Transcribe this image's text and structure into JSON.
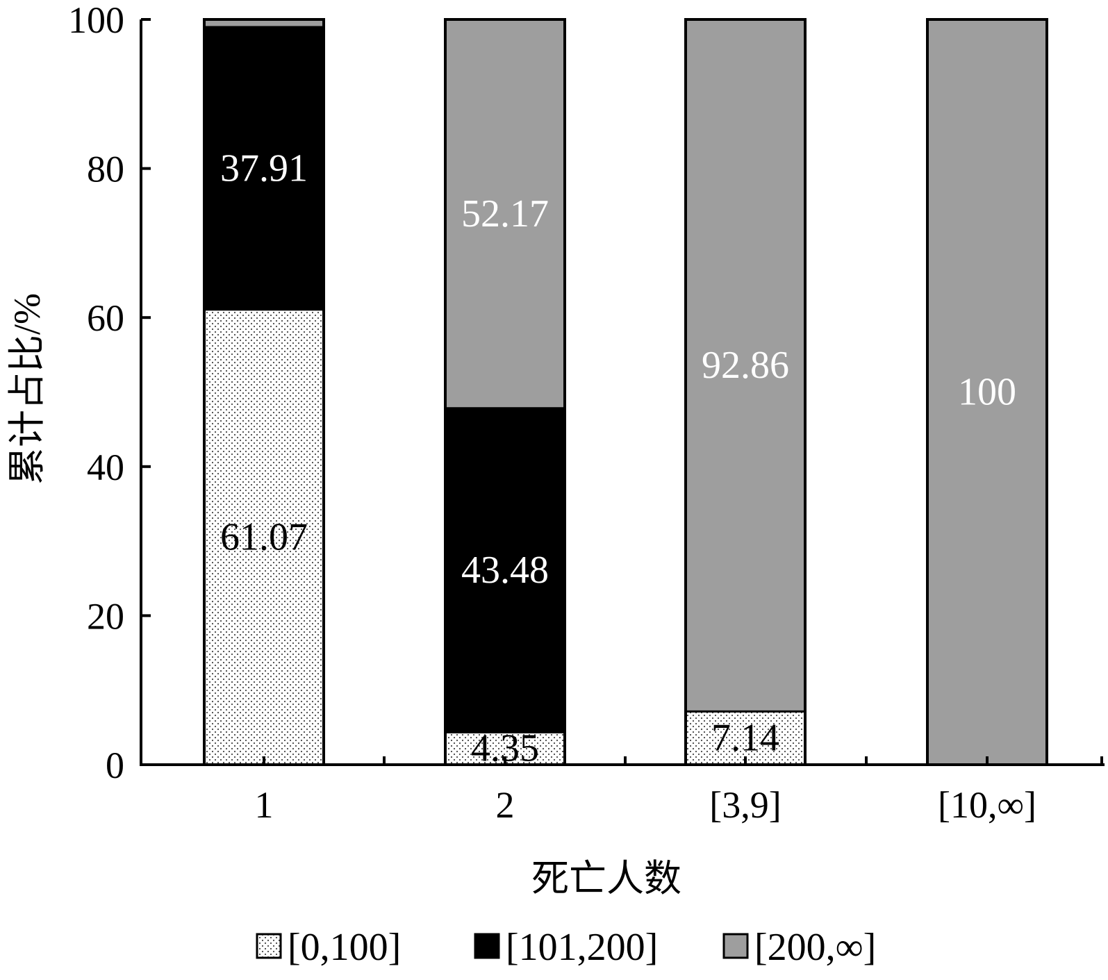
{
  "chart_data": {
    "type": "bar",
    "stacked": true,
    "categories": [
      "1",
      "2",
      "[3,9]",
      "[10,∞]"
    ],
    "series": [
      {
        "name": "[0,100]",
        "values": [
          61.07,
          4.35,
          7.14,
          0
        ],
        "color": "#ffffff",
        "pattern": "dots",
        "label_color": "#000000"
      },
      {
        "name": "[101,200]",
        "values": [
          37.91,
          43.48,
          0,
          0
        ],
        "color": "#000000",
        "label_color": "#ffffff"
      },
      {
        "name": "[200,∞]",
        "values": [
          1.02,
          52.17,
          92.86,
          100
        ],
        "color": "#9e9e9e",
        "label_color": "#ffffff"
      }
    ],
    "data_labels": [
      [
        "61.07",
        "37.91",
        ""
      ],
      [
        "4.35",
        "43.48",
        "52.17"
      ],
      [
        "7.14",
        "",
        "92.86"
      ],
      [
        "",
        "",
        "100"
      ]
    ],
    "ylim": [
      0,
      100
    ],
    "yticks": [
      "0",
      "20",
      "40",
      "60",
      "80",
      "100"
    ],
    "xlabel": "死亡人数",
    "ylabel": "累计占比/%",
    "legend_position": "bottom",
    "grid": false
  }
}
